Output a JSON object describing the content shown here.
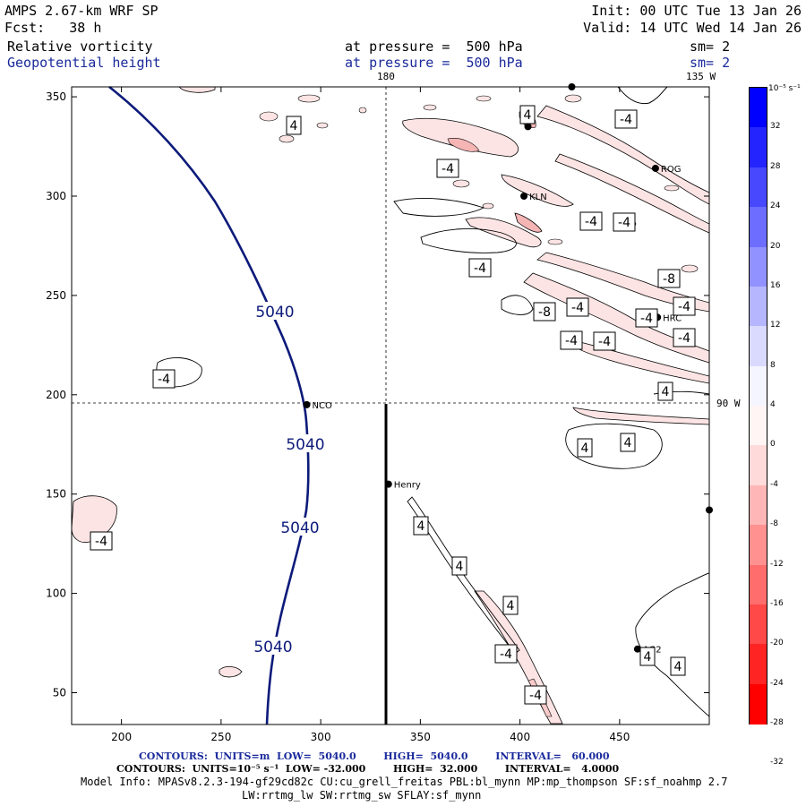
{
  "header": {
    "model": "AMPS 2.67-km WRF SP",
    "forecast": "Fcst:   38 h",
    "init": "Init: 00 UTC Tue 13 Jan 26",
    "valid": "Valid: 14 UTC Wed 14 Jan 26",
    "field1": "Relative vorticity",
    "field1_level": "at pressure =  500 hPa",
    "field1_sm": "sm= 2",
    "field2": "Geopotential height",
    "field2_level": "at pressure =  500 hPa",
    "field2_sm": "sm= 2"
  },
  "map": {
    "axes": {
      "x_ticks": [
        "200",
        "250",
        "300",
        "350",
        "400",
        "450"
      ],
      "y_ticks": [
        "350",
        "300",
        "250",
        "200",
        "150",
        "100",
        "50"
      ],
      "x_range": [
        175,
        495
      ],
      "y_range": [
        34,
        355
      ]
    },
    "meridian_labels": {
      "m180": "180",
      "m135w": "135 W",
      "m90w": "90 W"
    },
    "stations": [
      {
        "name": "NCO",
        "x": 293,
        "y": 195
      },
      {
        "name": "Henry",
        "x": 334,
        "y": 155
      },
      {
        "name": "KLN",
        "x": 402,
        "y": 300
      },
      {
        "name": "ROG",
        "x": 468,
        "y": 314
      },
      {
        "name": "HRC",
        "x": 469,
        "y": 239
      },
      {
        "name": "AG2",
        "x": 459,
        "y": 72
      }
    ],
    "height_contour": {
      "value": "5040",
      "labels": [
        "5040",
        "5040",
        "5040",
        "5040"
      ],
      "color": "#0c1a7a"
    },
    "vorticity_labels": [
      "4",
      "-4",
      "-4",
      "-4",
      "-4",
      "-8",
      "-4",
      "-4",
      "-4",
      "-8",
      "-4",
      "-4",
      "-4",
      "4",
      "4",
      "4",
      "4",
      "4",
      "4",
      "-4",
      "-4",
      "-4",
      "4",
      "4",
      "-4",
      "-4",
      "4"
    ]
  },
  "colorbar": {
    "unit": "10⁻⁵ s⁻¹",
    "labels": [
      "32",
      "28",
      "24",
      "20",
      "16",
      "12",
      "8",
      "4",
      "0",
      "-4",
      "-8",
      "-12",
      "-16",
      "-20",
      "-24",
      "-28",
      "-32"
    ],
    "colors": [
      "#0000ff",
      "#2424ff",
      "#4848ff",
      "#6d6dff",
      "#9191ff",
      "#b6b6ff",
      "#dadaff",
      "#f5f5ff",
      "#fff5f5",
      "#ffdada",
      "#ffb6b6",
      "#ff9191",
      "#ff6d6d",
      "#ff4848",
      "#ff2424",
      "#ff0000"
    ]
  },
  "footer": {
    "contours1": "CONTOURS:  UNITS=m  LOW=  5040.0        HIGH=  5040.0        INTERVAL=   60.000",
    "contours2": "CONTOURS:  UNITS=10⁻⁵ s⁻¹  LOW= -32.000        HIGH=  32.000        INTERVAL=   4.0000",
    "model_info": "Model Info: MPASv8.2.3-194-gf29cd82c CU:cu_grell_freitas PBL:bl_mynn MP:mp_thompson SF:sf_noahmp 2.7",
    "model_info2": "LW:rrtmg_lw SW:rrtmg_sw SFLAY:sf_mynn"
  }
}
